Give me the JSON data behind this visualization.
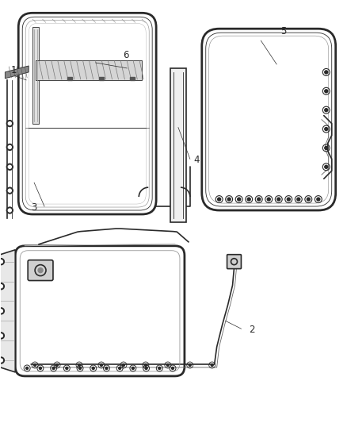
{
  "background_color": "#ffffff",
  "line_color": "#2a2a2a",
  "label_color": "#2a2a2a",
  "figsize": [
    4.38,
    5.33
  ],
  "dpi": 100,
  "lw_outer": 2.0,
  "lw_mid": 1.2,
  "lw_thin": 0.6,
  "lw_label": 0.5
}
